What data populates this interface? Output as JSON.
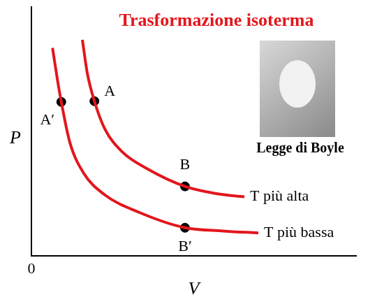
{
  "chart_data": {
    "type": "line",
    "title": "Trasformazione isoterma",
    "subtitle": "Legge di Boyle",
    "xlabel": "V",
    "ylabel": "P",
    "xlim": [
      0,
      10
    ],
    "ylim": [
      0,
      10
    ],
    "xticks": [
      0
    ],
    "yticks": [],
    "tick_labels": "x",
    "grid": false,
    "series": [
      {
        "name": "T più alta",
        "color": "#e3161c",
        "x": [
          1.57,
          1.72,
          1.94,
          2.26,
          2.8,
          3.55,
          4.73,
          5.7,
          6.56
        ],
        "values": [
          8.68,
          7.35,
          6.22,
          5.11,
          4.18,
          3.52,
          2.8,
          2.51,
          2.38
        ]
      },
      {
        "name": "T più bassa",
        "color": "#e3161c",
        "x": [
          0.65,
          0.8,
          0.92,
          1.18,
          1.61,
          2.26,
          3.33,
          4.73,
          5.91,
          6.99
        ],
        "values": [
          8.36,
          7.09,
          6.19,
          4.58,
          3.33,
          2.46,
          1.75,
          1.14,
          1.01,
          0.93
        ]
      }
    ],
    "points": [
      {
        "label": "A",
        "x": 1.94,
        "y": 6.22
      },
      {
        "label": "A′",
        "x": 0.92,
        "y": 6.19
      },
      {
        "label": "B",
        "x": 4.73,
        "y": 2.8
      },
      {
        "label": "B′",
        "x": 4.73,
        "y": 1.14
      }
    ]
  }
}
